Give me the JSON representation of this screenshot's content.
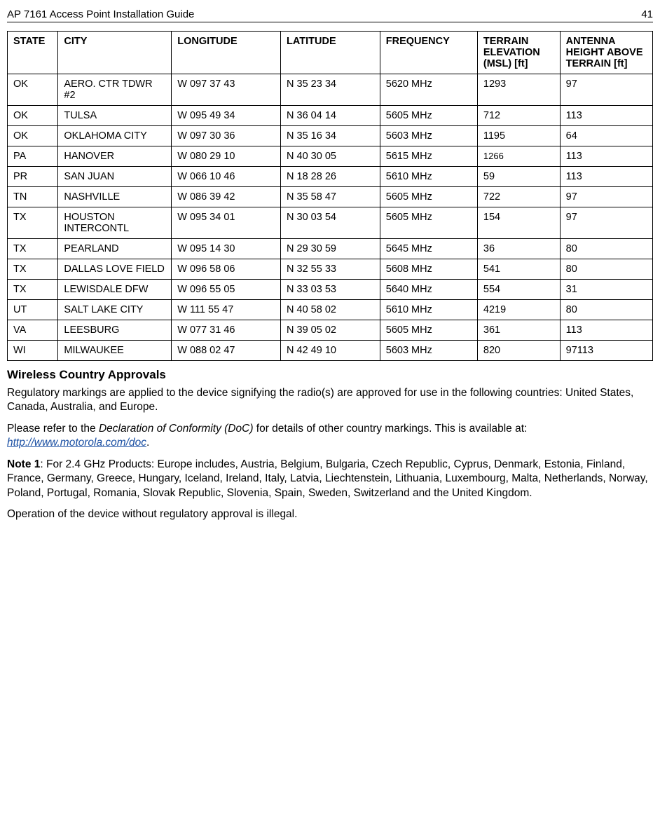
{
  "header": {
    "title": "AP 7161 Access Point Installation Guide",
    "page": "41"
  },
  "table": {
    "columns": [
      "STATE",
      "CITY",
      "LONGITUDE",
      "LATITUDE",
      "FREQUENCY",
      "TERRAIN ELEVATION (MSL) [ft]",
      "ANTENNA HEIGHT ABOVE TERRAIN [ft]"
    ],
    "rows": [
      [
        "OK",
        "AERO. CTR TDWR #2",
        "W 097 37 43",
        "N 35 23 34",
        "5620 MHz",
        "1293",
        "97"
      ],
      [
        "OK",
        "TULSA",
        "W 095 49 34",
        "N 36 04 14",
        "5605 MHz",
        "712",
        "113"
      ],
      [
        "OK",
        "OKLAHOMA  CITY",
        "W 097 30 36",
        "N 35 16 34",
        "5603 MHz",
        "1195",
        "64"
      ],
      [
        "PA",
        "HANOVER",
        "W 080 29 10",
        "N 40 30 05",
        "5615 MHz",
        "1266",
        "113"
      ],
      [
        "PR",
        "SAN JUAN",
        "W 066 10 46",
        "N 18 28 26",
        "5610 MHz",
        "59",
        "113"
      ],
      [
        "TN",
        "NASHVILLE",
        "W 086 39 42",
        "N 35 58 47",
        "5605 MHz",
        "722",
        "97"
      ],
      [
        "TX",
        "HOUSTON INTERCONTL",
        "W 095 34 01",
        "N 30 03 54",
        "5605 MHz",
        "154",
        "97"
      ],
      [
        "TX",
        "PEARLAND",
        "W 095 14 30",
        "N 29 30 59",
        "5645 MHz",
        "36",
        "80"
      ],
      [
        "TX",
        "DALLAS LOVE FIELD",
        "W 096 58 06",
        "N 32 55 33",
        "5608 MHz",
        "541",
        "80"
      ],
      [
        "TX",
        "LEWISDALE DFW",
        "W 096 55 05",
        "N 33 03 53",
        "5640 MHz",
        "554",
        "31"
      ],
      [
        "UT",
        "SALT LAKE CITY",
        "W 111 55 47",
        "N 40 58 02",
        "5610 MHz",
        "4219",
        "80"
      ],
      [
        "VA",
        "LEESBURG",
        "W 077 31 46",
        "N 39 05 02",
        "5605 MHz",
        "361",
        "113"
      ],
      [
        "WI",
        "MILWAUKEE",
        "W 088 02 47",
        "N 42 49 10",
        "5603 MHz",
        "820",
        "97113"
      ]
    ],
    "header_fontsize": 14.5,
    "cell_fontsize": 14.5,
    "border_color": "#000000",
    "background_color": "#ffffff"
  },
  "sections": {
    "wireless_title": "Wireless  Country Approvals",
    "p1": "Regulatory markings are applied to the device signifying the radio(s) are approved for use in the following countries: United States, Canada, Australia, and Europe.",
    "p2_a": "Please refer to the ",
    "p2_doc": "Declaration of Conformity (DoC)",
    "p2_b": " for details  of other country markings. This is available ",
    "p2_at": "at: ",
    "p2_link": "http://www.motorola.com/doc",
    "p2_c": ".",
    "p3_a": "Note  1",
    "p3_b": ": For 2.4 GHz Products: Europe includes, Austria, Belgium, Bulgaria, Czech Republic, Cyprus, Denmark, Estonia, Finland, France, Germany, Greece, Hungary, Iceland, Ireland, Italy, Latvia, Liechtenstein, Lithuania, Luxembourg, Malta, Netherlands, Norway, Poland, Portugal, Romania, Slovak Republic, Slovenia, Spain, Sweden, Switzerland and the United Kingdom.",
    "p4": "Operation of the device without regulatory approval is illegal."
  }
}
